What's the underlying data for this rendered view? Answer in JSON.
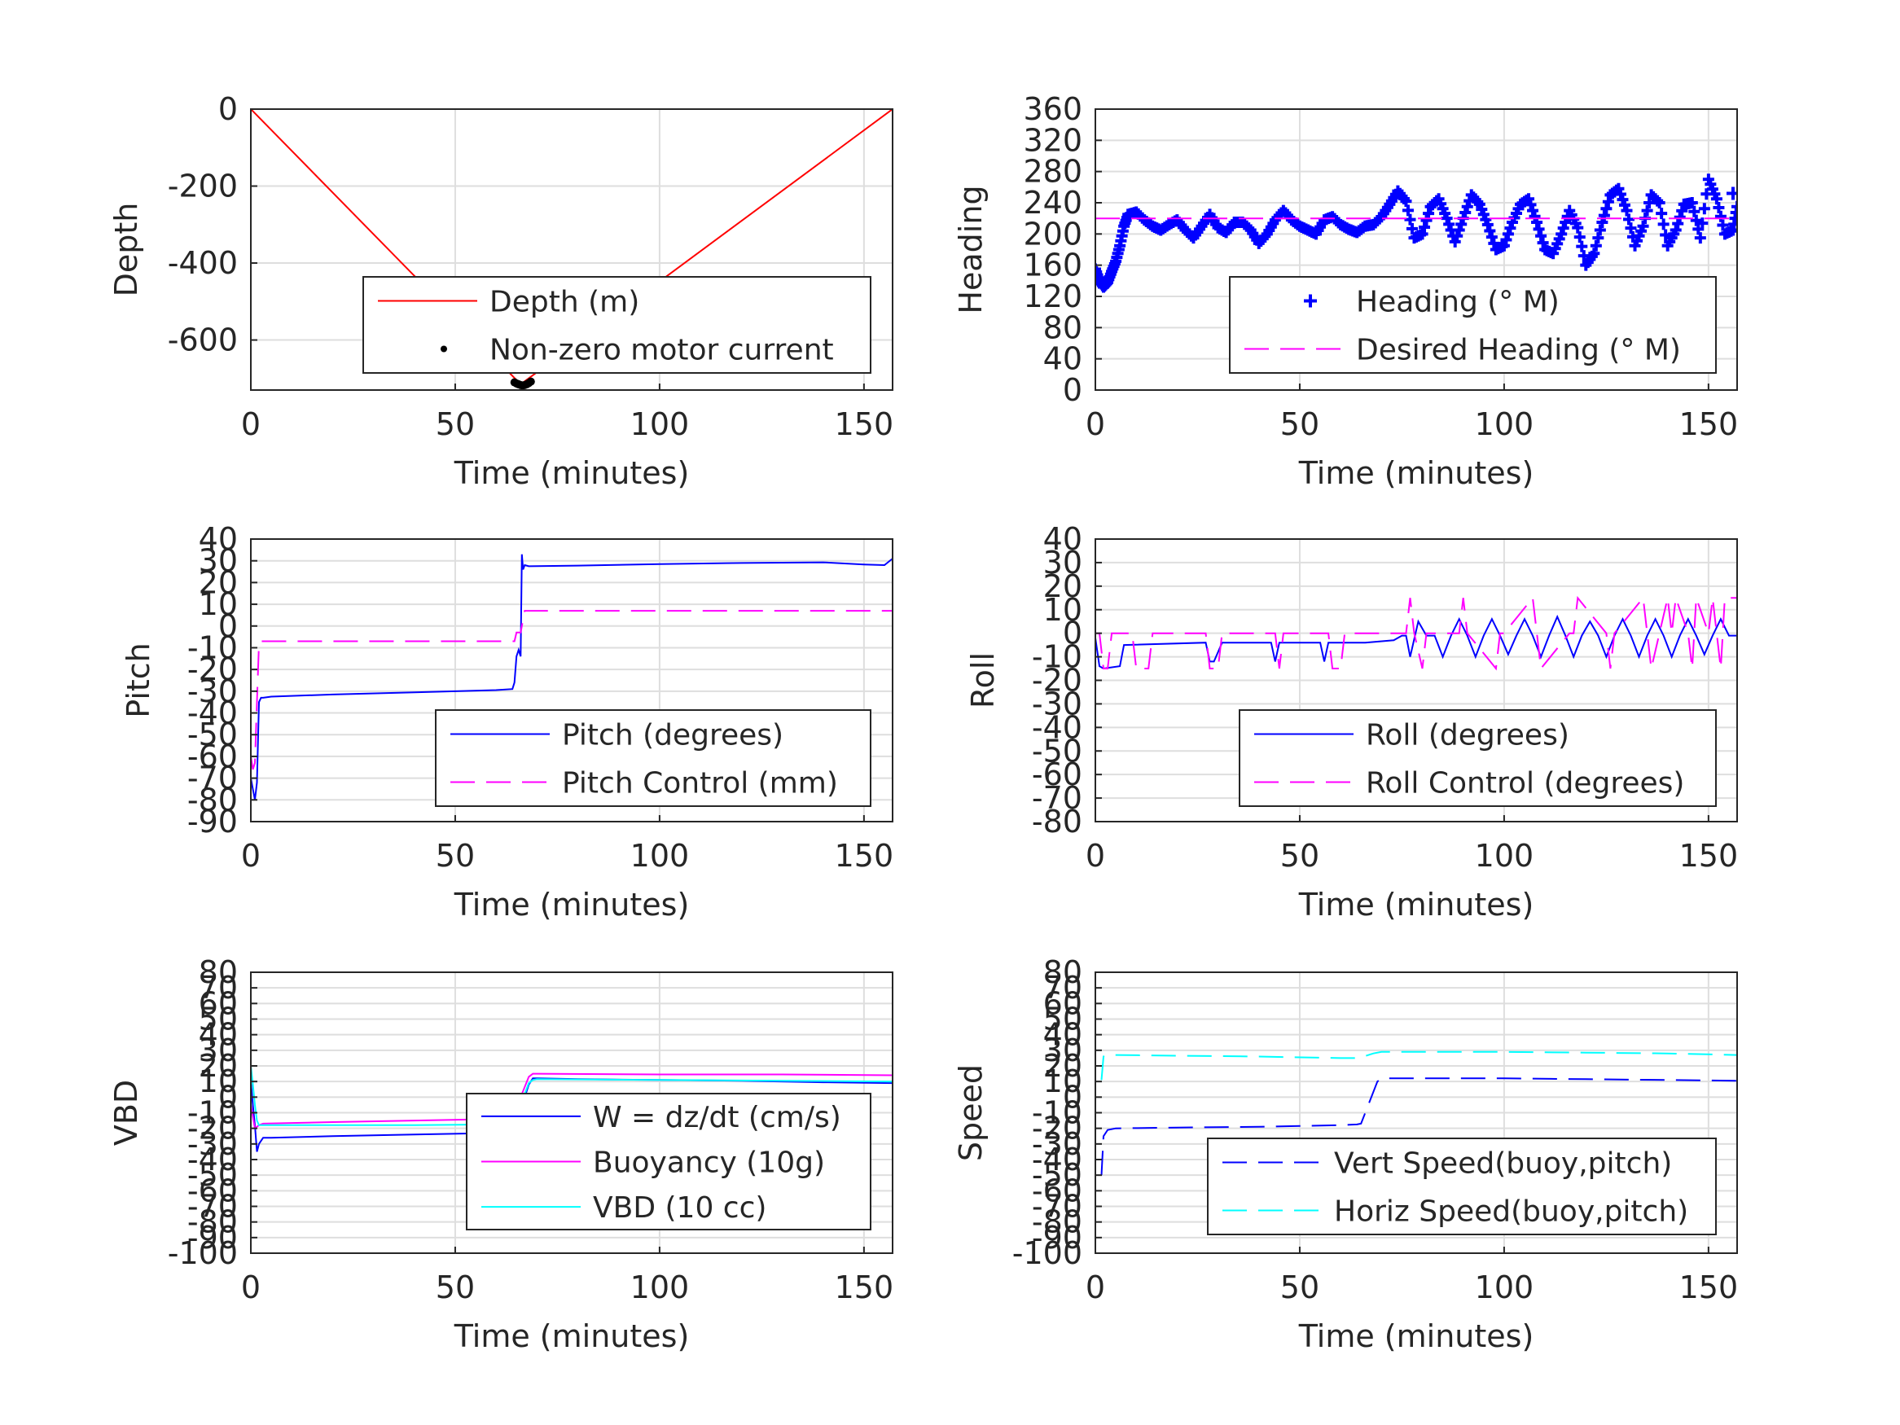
{
  "figure": {
    "type": "multi-panel time series",
    "rows": 3,
    "cols": 2
  },
  "colors": {
    "red": "#ff0000",
    "blue": "#0000ff",
    "magenta": "#ff00ff",
    "cyan": "#00ffff",
    "black": "#000000"
  },
  "chart_data": [
    {
      "id": "depth",
      "type": "line",
      "xlabel": "Time (minutes)",
      "ylabel": "Depth",
      "xlim": [
        0,
        157
      ],
      "ylim": [
        -730,
        0
      ],
      "xticks": [
        0,
        50,
        100,
        150
      ],
      "yticks": [
        -600,
        -400,
        -200,
        0
      ],
      "grid": true,
      "legend_position": "bottom-right",
      "series": [
        {
          "name": "Depth (m)",
          "style": "solid",
          "color": "#ff0000",
          "x": [
            0,
            66,
            157
          ],
          "y": [
            0,
            -715,
            0
          ]
        },
        {
          "name": "Non-zero motor current",
          "style": "dots",
          "color": "#000000",
          "x": [
            64.5,
            65,
            65.5,
            66,
            66.5,
            67,
            67.5,
            68,
            68.5
          ],
          "y": [
            -710,
            -713,
            -715,
            -717,
            -718,
            -717,
            -715,
            -712,
            -708
          ]
        }
      ]
    },
    {
      "id": "heading",
      "type": "scatter",
      "xlabel": "Time (minutes)",
      "ylabel": "Heading",
      "xlim": [
        0,
        157
      ],
      "ylim": [
        0,
        360
      ],
      "xticks": [
        0,
        50,
        100,
        150
      ],
      "yticks": [
        0,
        40,
        80,
        120,
        160,
        200,
        240,
        280,
        320,
        360
      ],
      "grid": true,
      "legend_position": "bottom-right",
      "series": [
        {
          "name": "Heading (° M)",
          "style": "plus",
          "color": "#0000ff",
          "x": [
            0,
            1,
            2,
            3,
            4,
            5,
            6,
            7,
            8,
            10,
            12,
            14,
            16,
            18,
            20,
            22,
            24,
            26,
            28,
            30,
            32,
            34,
            36,
            38,
            40,
            42,
            44,
            46,
            48,
            50,
            52,
            54,
            56,
            58,
            60,
            62,
            64,
            66,
            68,
            70,
            72,
            74,
            76,
            78,
            80,
            82,
            84,
            86,
            88,
            90,
            92,
            94,
            96,
            98,
            100,
            102,
            104,
            106,
            108,
            110,
            112,
            114,
            116,
            118,
            120,
            122,
            124,
            126,
            128,
            130,
            132,
            134,
            136,
            138,
            140,
            142,
            144,
            146,
            148,
            150,
            152,
            154,
            156,
            157
          ],
          "y": [
            155,
            140,
            132,
            138,
            152,
            165,
            185,
            210,
            225,
            228,
            218,
            210,
            205,
            212,
            218,
            205,
            195,
            210,
            225,
            208,
            202,
            215,
            215,
            205,
            188,
            200,
            218,
            230,
            218,
            210,
            205,
            200,
            218,
            222,
            212,
            206,
            202,
            210,
            212,
            222,
            238,
            255,
            242,
            195,
            200,
            235,
            245,
            220,
            190,
            220,
            250,
            238,
            212,
            180,
            185,
            215,
            238,
            245,
            215,
            180,
            175,
            200,
            230,
            208,
            160,
            175,
            215,
            250,
            258,
            230,
            185,
            210,
            250,
            240,
            185,
            205,
            238,
            240,
            195,
            270,
            245,
            200,
            205,
            235
          ]
        },
        {
          "name": "Desired Heading (° M)",
          "style": "dashed",
          "color": "#ff00ff",
          "x": [
            0,
            157
          ],
          "y": [
            220,
            220
          ]
        }
      ]
    },
    {
      "id": "pitch",
      "type": "line",
      "xlabel": "Time (minutes)",
      "ylabel": "Pitch",
      "xlim": [
        0,
        157
      ],
      "ylim": [
        -90,
        40
      ],
      "xticks": [
        0,
        50,
        100,
        150
      ],
      "yticks": [
        -90,
        -80,
        -70,
        -60,
        -50,
        -40,
        -30,
        -20,
        -10,
        0,
        10,
        20,
        30,
        40
      ],
      "grid": true,
      "legend_position": "bottom-right",
      "series": [
        {
          "name": "Pitch (degrees)",
          "style": "solid",
          "color": "#0000ff",
          "x": [
            0,
            0.5,
            1,
            1.5,
            2,
            2.5,
            3,
            5,
            20,
            40,
            60,
            64,
            64.5,
            65,
            65.5,
            66,
            66.3,
            66.6,
            67,
            68,
            80,
            100,
            120,
            140,
            150,
            155,
            157
          ],
          "y": [
            -70,
            -75,
            -80,
            -72,
            -35,
            -33,
            -33,
            -32.5,
            -31.5,
            -30.5,
            -29.5,
            -29,
            -26,
            -14,
            -11,
            -14,
            33,
            26,
            28,
            27.5,
            27.8,
            28.5,
            29,
            29.3,
            28.3,
            28,
            31
          ]
        },
        {
          "name": "Pitch Control (mm)",
          "style": "dashed",
          "color": "#ff00ff",
          "x": [
            0,
            0.5,
            1,
            1.5,
            2,
            2.5,
            3,
            40,
            63,
            64,
            64.5,
            65,
            66,
            67,
            68,
            69,
            157
          ],
          "y": [
            -60,
            -66,
            -63,
            -35,
            -8,
            -7,
            -7,
            -7,
            -7,
            -7,
            -7,
            -3,
            -3,
            7,
            7,
            7,
            7
          ]
        }
      ]
    },
    {
      "id": "roll",
      "type": "line",
      "xlabel": "Time (minutes)",
      "ylabel": "Roll",
      "xlim": [
        0,
        157
      ],
      "ylim": [
        -80,
        40
      ],
      "xticks": [
        0,
        50,
        100,
        150
      ],
      "yticks": [
        -80,
        -70,
        -60,
        -50,
        -40,
        -30,
        -20,
        -10,
        0,
        10,
        20,
        30,
        40
      ],
      "grid": true,
      "legend_position": "bottom-right",
      "series": [
        {
          "name": "Roll (degrees)",
          "style": "solid",
          "color": "#0000ff",
          "x": [
            0,
            1,
            2,
            6,
            7,
            27,
            28,
            29,
            31,
            43,
            44,
            45,
            55,
            56,
            57,
            66,
            73,
            75,
            76,
            77,
            79,
            81,
            83,
            85,
            87,
            89,
            91,
            93,
            95,
            97,
            99,
            101,
            103,
            105,
            107,
            109,
            111,
            113,
            115,
            117,
            119,
            121,
            123,
            125,
            127,
            129,
            131,
            133,
            135,
            137,
            139,
            141,
            143,
            145,
            147,
            149,
            151,
            153,
            155,
            157
          ],
          "y": [
            -2,
            -14,
            -15,
            -14,
            -5,
            -4,
            -12,
            -12,
            -4,
            -4,
            -12,
            -4,
            -4,
            -12,
            -4,
            -4,
            -3,
            -1,
            -1,
            -10,
            5,
            -1,
            -1,
            -10,
            -1,
            6,
            -1,
            -10,
            -1,
            6,
            -1,
            -9,
            -1,
            6,
            -1,
            -10,
            -1,
            7,
            -1,
            -10,
            -1,
            5,
            -1,
            -10,
            -1,
            6,
            -1,
            -10,
            -1,
            6,
            -1,
            -10,
            -1,
            6,
            -1,
            -9,
            -1,
            6,
            -1,
            -1
          ]
        },
        {
          "name": "Roll Control (degrees)",
          "style": "dashed",
          "color": "#ff00ff",
          "x": [
            0,
            1,
            2,
            3,
            4,
            9,
            10,
            13,
            14,
            27,
            28,
            30,
            31,
            44,
            45,
            46,
            57,
            58,
            60,
            61,
            72,
            76,
            77,
            78,
            80,
            81,
            89,
            90,
            91,
            98,
            99,
            100,
            107,
            108,
            109,
            116,
            117,
            118,
            125,
            126,
            127,
            134,
            135,
            136,
            140,
            141,
            142,
            145,
            146,
            147,
            150,
            151,
            153,
            154,
            157
          ],
          "y": [
            0,
            0,
            -15,
            -15,
            0,
            0,
            -15,
            -15,
            0,
            0,
            -15,
            -15,
            0,
            0,
            -15,
            0,
            0,
            -15,
            -15,
            0,
            0,
            0,
            15,
            0,
            -15,
            0,
            0,
            15,
            0,
            -15,
            0,
            0,
            15,
            0,
            -15,
            0,
            0,
            15,
            0,
            -15,
            0,
            15,
            0,
            -15,
            15,
            0,
            15,
            0,
            -15,
            15,
            0,
            15,
            -15,
            15,
            15
          ]
        }
      ]
    },
    {
      "id": "vbd",
      "type": "line",
      "xlabel": "Time (minutes)",
      "ylabel": "VBD",
      "xlim": [
        0,
        157
      ],
      "ylim": [
        -100,
        80
      ],
      "xticks": [
        0,
        50,
        100,
        150
      ],
      "yticks": [
        -100,
        -90,
        -80,
        -70,
        -60,
        -50,
        -40,
        -30,
        -20,
        -10,
        0,
        10,
        20,
        30,
        40,
        50,
        60,
        70,
        80
      ],
      "grid": true,
      "legend_position": "bottom-right",
      "series": [
        {
          "name": "W = dz/dt (cm/s)",
          "style": "solid",
          "color": "#0000ff",
          "x": [
            0,
            0.5,
            1,
            1.5,
            2,
            3,
            5,
            20,
            40,
            60,
            64,
            65,
            66,
            67,
            68,
            69,
            70,
            80,
            100,
            120,
            140,
            157
          ],
          "y": [
            10,
            -5,
            -18,
            -35,
            -30,
            -26,
            -26,
            -25,
            -24,
            -23,
            -22,
            -20,
            -10,
            0,
            8,
            12,
            12,
            11.5,
            11,
            10.5,
            9.5,
            9
          ]
        },
        {
          "name": "Buoyancy (10g)",
          "style": "solid",
          "color": "#ff00ff",
          "x": [
            0,
            1,
            2,
            3,
            20,
            40,
            60,
            64,
            66,
            68,
            69,
            70,
            100,
            130,
            157
          ],
          "y": [
            -5,
            -20,
            -18,
            -17,
            -16,
            -15,
            -14,
            -14,
            0,
            13,
            15,
            15,
            14.5,
            14.5,
            14
          ]
        },
        {
          "name": "VBD (10 cc)",
          "style": "solid",
          "color": "#00ffff",
          "x": [
            0,
            0.5,
            1,
            1.5,
            2,
            3,
            5,
            20,
            40,
            60,
            64,
            66,
            68,
            69,
            70,
            100,
            130,
            157
          ],
          "y": [
            20,
            8,
            -5,
            -15,
            -18,
            -18,
            -18,
            -18,
            -18,
            -17.5,
            -17.5,
            -5,
            9,
            11,
            11.5,
            11,
            10.5,
            10
          ]
        }
      ]
    },
    {
      "id": "speed",
      "type": "line",
      "xlabel": "Time (minutes)",
      "ylabel": "Speed",
      "xlim": [
        0,
        157
      ],
      "ylim": [
        -100,
        80
      ],
      "xticks": [
        0,
        50,
        100,
        150
      ],
      "yticks": [
        -100,
        -90,
        -80,
        -70,
        -60,
        -50,
        -40,
        -30,
        -20,
        -10,
        0,
        10,
        20,
        30,
        40,
        50,
        60,
        70,
        80
      ],
      "grid": true,
      "legend_position": "bottom-right",
      "series": [
        {
          "name": "Vert Speed(buoy,pitch)",
          "style": "dashed",
          "color": "#0000ff",
          "x": [
            1.5,
            2,
            3,
            5,
            20,
            40,
            60,
            64,
            65,
            69,
            70,
            80,
            100,
            120,
            140,
            157
          ],
          "y": [
            -50,
            -25,
            -21,
            -20,
            -19.5,
            -19,
            -18,
            -17.5,
            -17,
            10,
            12,
            12,
            12,
            11.5,
            11,
            10.5
          ]
        },
        {
          "name": "Horiz Speed(buoy,pitch)",
          "style": "dashed",
          "color": "#00ffff",
          "x": [
            1.5,
            2,
            3,
            5,
            20,
            40,
            60,
            64,
            65,
            68,
            70,
            80,
            100,
            120,
            140,
            157
          ],
          "y": [
            11,
            26,
            27,
            27,
            26.5,
            26,
            25,
            25,
            25.5,
            28,
            29,
            29,
            29,
            28.5,
            28,
            27
          ]
        }
      ]
    }
  ]
}
